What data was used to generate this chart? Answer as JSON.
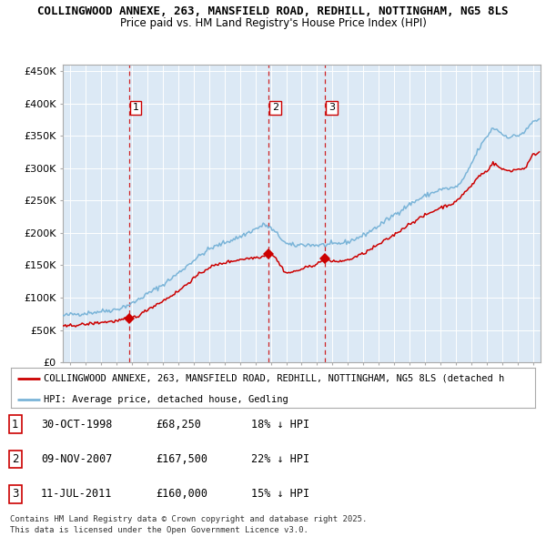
{
  "title1": "COLLINGWOOD ANNEXE, 263, MANSFIELD ROAD, REDHILL, NOTTINGHAM, NG5 8LS",
  "title2": "Price paid vs. HM Land Registry's House Price Index (HPI)",
  "ylabel_ticks": [
    "£0",
    "£50K",
    "£100K",
    "£150K",
    "£200K",
    "£250K",
    "£300K",
    "£350K",
    "£400K",
    "£450K"
  ],
  "ytick_values": [
    0,
    50000,
    100000,
    150000,
    200000,
    250000,
    300000,
    350000,
    400000,
    450000
  ],
  "ylim": [
    0,
    460000
  ],
  "xlim_start": 1994.5,
  "xlim_end": 2025.5,
  "hpi_color": "#7ab4d8",
  "price_color": "#cc0000",
  "bg_color": "#dce9f5",
  "grid_color": "#ffffff",
  "sale_dates": [
    1998.83,
    2007.86,
    2011.53
  ],
  "sale_prices": [
    68250,
    167500,
    160000
  ],
  "sale_labels": [
    "1",
    "2",
    "3"
  ],
  "vline_color": "#cc0000",
  "legend_label_red": "COLLINGWOOD ANNEXE, 263, MANSFIELD ROAD, REDHILL, NOTTINGHAM, NG5 8LS (detached h",
  "legend_label_blue": "HPI: Average price, detached house, Gedling",
  "table_data": [
    {
      "num": "1",
      "date": "30-OCT-1998",
      "price": "£68,250",
      "hpi": "18% ↓ HPI"
    },
    {
      "num": "2",
      "date": "09-NOV-2007",
      "price": "£167,500",
      "hpi": "22% ↓ HPI"
    },
    {
      "num": "3",
      "date": "11-JUL-2011",
      "price": "£160,000",
      "hpi": "15% ↓ HPI"
    }
  ],
  "footer": "Contains HM Land Registry data © Crown copyright and database right 2025.\nThis data is licensed under the Open Government Licence v3.0."
}
